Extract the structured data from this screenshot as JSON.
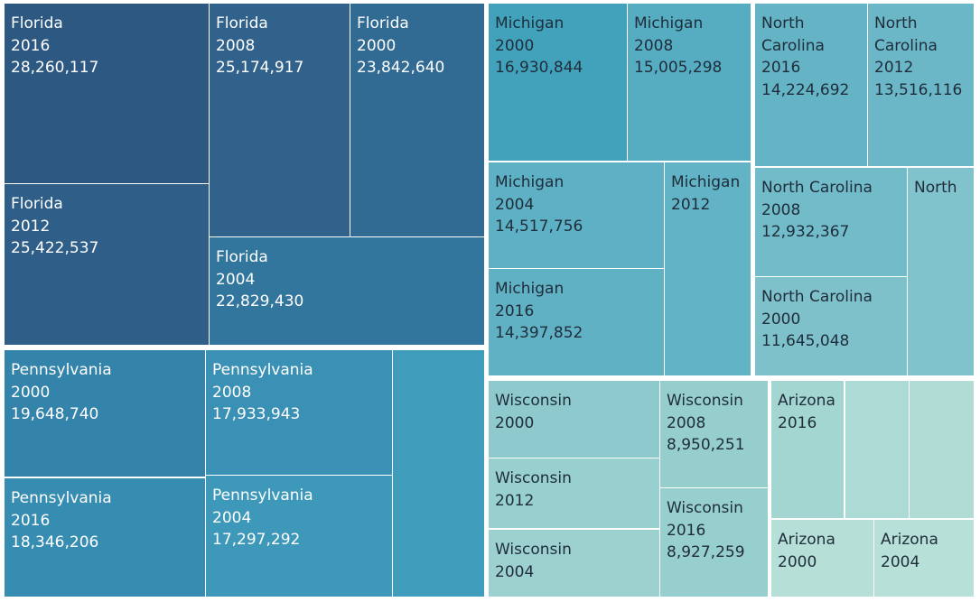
{
  "chart_data": {
    "type": "treemap",
    "title": "",
    "groups": [
      {
        "state": "Florida",
        "tiles": [
          {
            "lines": [
              "Florida",
              "2016",
              "28,260,117"
            ],
            "value": 28260117,
            "color": "#2c5882",
            "text": "#ffffff"
          },
          {
            "lines": [
              "Florida",
              "2012",
              "25,422,537"
            ],
            "value": 25422537,
            "color": "#2f5f89",
            "text": "#ffffff"
          },
          {
            "lines": [
              "Florida",
              "2008",
              "25,174,917"
            ],
            "value": 25174917,
            "color": "#30628b",
            "text": "#ffffff"
          },
          {
            "lines": [
              "Florida",
              "2000",
              "23,842,640"
            ],
            "value": 23842640,
            "color": "#316a93",
            "text": "#ffffff"
          },
          {
            "lines": [
              "Florida",
              "2004",
              "22,829,430"
            ],
            "value": 22829430,
            "color": "#32769e",
            "text": "#ffffff"
          }
        ]
      },
      {
        "state": "Pennsylvania",
        "tiles": [
          {
            "lines": [
              "Pennsylvania",
              "2000",
              "19,648,740"
            ],
            "value": 19648740,
            "color": "#3383ab",
            "text": "#ffffff"
          },
          {
            "lines": [
              "Pennsylvania",
              "2016",
              "18,346,206"
            ],
            "value": 18346206,
            "color": "#378cb2",
            "text": "#ffffff"
          },
          {
            "lines": [
              "Pennsylvania",
              "2008",
              "17,933,943"
            ],
            "value": 17933943,
            "color": "#3a91b5",
            "text": "#ffffff"
          },
          {
            "lines": [
              "Pennsylvania",
              "2004",
              "17,297,292"
            ],
            "value": 17297292,
            "color": "#3d98ba",
            "text": "#ffffff"
          },
          {
            "lines": [],
            "value": null,
            "color": "#409cbb",
            "text": "#ffffff"
          }
        ]
      },
      {
        "state": "Michigan",
        "tiles": [
          {
            "lines": [
              "Michigan",
              "2000",
              "16,930,844"
            ],
            "value": 16930844,
            "color": "#42a2bb",
            "text": "#1f2d3a"
          },
          {
            "lines": [
              "Michigan",
              "2008",
              "15,005,298"
            ],
            "value": 15005298,
            "color": "#56acc1",
            "text": "#1f2d3a"
          },
          {
            "lines": [
              "Michigan",
              "2004",
              "14,517,756"
            ],
            "value": 14517756,
            "color": "#5eb0c4",
            "text": "#1f2d3a"
          },
          {
            "lines": [
              "Michigan",
              "2016",
              "14,397,852"
            ],
            "value": 14397852,
            "color": "#60b1c4",
            "text": "#1f2d3a"
          },
          {
            "lines": [
              "Michigan",
              "2012"
            ],
            "value": null,
            "color": "#62b3c5",
            "text": "#1f2d3a"
          }
        ]
      },
      {
        "state": "North Carolina",
        "tiles": [
          {
            "lines": [
              "North",
              "Carolina",
              "2016",
              "14,224,692"
            ],
            "value": 14224692,
            "color": "#64b4c5",
            "text": "#1f2d3a"
          },
          {
            "lines": [
              "North",
              "Carolina",
              "2012",
              "13,516,116"
            ],
            "value": 13516116,
            "color": "#6bb7c7",
            "text": "#1f2d3a"
          },
          {
            "lines": [
              "North Carolina",
              "2008",
              "12,932,367"
            ],
            "value": 12932367,
            "color": "#72bbc9",
            "text": "#1f2d3a"
          },
          {
            "lines": [
              "North Carolina",
              "2000",
              "11,645,048"
            ],
            "value": 11645048,
            "color": "#7ec1cb",
            "text": "#1f2d3a"
          },
          {
            "lines": [
              "North"
            ],
            "value": null,
            "color": "#80c3cc",
            "text": "#1f2d3a"
          }
        ]
      },
      {
        "state": "Wisconsin",
        "tiles": [
          {
            "lines": [
              "Wisconsin",
              "2000"
            ],
            "value": null,
            "color": "#8ecacd",
            "text": "#1f2d3a"
          },
          {
            "lines": [
              "Wisconsin",
              "2008",
              "8,950,251"
            ],
            "value": 8950251,
            "color": "#96cece",
            "text": "#1f2d3a"
          },
          {
            "lines": [
              "Wisconsin",
              "2012"
            ],
            "value": null,
            "color": "#98cfcf",
            "text": "#1f2d3a"
          },
          {
            "lines": [
              "Wisconsin",
              "2016",
              "8,927,259"
            ],
            "value": 8927259,
            "color": "#97cfcf",
            "text": "#1f2d3a"
          },
          {
            "lines": [
              "Wisconsin",
              "2004"
            ],
            "value": null,
            "color": "#9cd1cf",
            "text": "#1f2d3a"
          }
        ]
      },
      {
        "state": "Arizona",
        "tiles": [
          {
            "lines": [
              "Arizona",
              "2016"
            ],
            "value": null,
            "color": "#a4d6d1",
            "text": "#1f2d3a"
          },
          {
            "lines": [],
            "value": null,
            "color": "#acdad4",
            "text": "#1f2d3a"
          },
          {
            "lines": [],
            "value": null,
            "color": "#b0dcd5",
            "text": "#1f2d3a"
          },
          {
            "lines": [
              "Arizona",
              "2000"
            ],
            "value": null,
            "color": "#b5dfd7",
            "text": "#1f2d3a"
          },
          {
            "lines": [
              "Arizona",
              "2004"
            ],
            "value": null,
            "color": "#b7e0d8",
            "text": "#1f2d3a"
          }
        ]
      }
    ]
  }
}
